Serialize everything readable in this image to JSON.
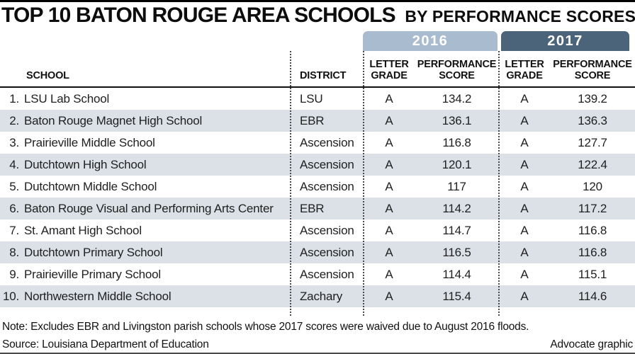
{
  "header": {
    "title": "TOP 10 BATON ROUGE AREA SCHOOLS",
    "subtitle": "BY PERFORMANCE SCORES"
  },
  "table": {
    "year_tabs": [
      {
        "label": "2016",
        "color": "#a9bccf"
      },
      {
        "label": "2017",
        "color": "#4c6479"
      }
    ],
    "columns": {
      "school": "SCHOOL",
      "district": "DISTRICT",
      "letter_grade": "LETTER GRADE",
      "performance_score": "PERFORMANCE SCORE"
    }
  },
  "chart_data": {
    "type": "table",
    "title": "TOP 10 BATON ROUGE AREA SCHOOLS BY PERFORMANCE SCORES",
    "column_groups": [
      "2016",
      "2017"
    ],
    "columns": [
      "SCHOOL",
      "DISTRICT",
      "LETTER GRADE (2016)",
      "PERFORMANCE SCORE (2016)",
      "LETTER GRADE (2017)",
      "PERFORMANCE SCORE (2017)"
    ],
    "rows": [
      {
        "rank": "1.",
        "school": "LSU Lab School",
        "district": "LSU",
        "grade_2016": "A",
        "score_2016": "134.2",
        "grade_2017": "A",
        "score_2017": "139.2"
      },
      {
        "rank": "2.",
        "school": "Baton Rouge Magnet High School",
        "district": "EBR",
        "grade_2016": "A",
        "score_2016": "136.1",
        "grade_2017": "A",
        "score_2017": "136.3"
      },
      {
        "rank": "3.",
        "school": "Prairieville Middle School",
        "district": "Ascension",
        "grade_2016": "A",
        "score_2016": "116.8",
        "grade_2017": "A",
        "score_2017": "127.7"
      },
      {
        "rank": "4.",
        "school": "Dutchtown High School",
        "district": "Ascension",
        "grade_2016": "A",
        "score_2016": "120.1",
        "grade_2017": "A",
        "score_2017": "122.4"
      },
      {
        "rank": "5.",
        "school": "Dutchtown Middle School",
        "district": "Ascension",
        "grade_2016": "A",
        "score_2016": "117",
        "grade_2017": "A",
        "score_2017": "120"
      },
      {
        "rank": "6.",
        "school": "Baton Rouge Visual and Performing Arts Center",
        "district": "EBR",
        "grade_2016": "A",
        "score_2016": "114.2",
        "grade_2017": "A",
        "score_2017": "117.2"
      },
      {
        "rank": "7.",
        "school": "St. Amant High School",
        "district": "Ascension",
        "grade_2016": "A",
        "score_2016": "114.7",
        "grade_2017": "A",
        "score_2017": "116.8"
      },
      {
        "rank": "8.",
        "school": "Dutchtown Primary School",
        "district": "Ascension",
        "grade_2016": "A",
        "score_2016": "116.5",
        "grade_2017": "A",
        "score_2017": "116.8"
      },
      {
        "rank": "9.",
        "school": "Prairieville Primary School",
        "district": "Ascension",
        "grade_2016": "A",
        "score_2016": "114.4",
        "grade_2017": "A",
        "score_2017": "115.1"
      },
      {
        "rank": "10.",
        "school": "Northwestern Middle School",
        "district": "Zachary",
        "grade_2016": "A",
        "score_2016": "115.4",
        "grade_2017": "A",
        "score_2017": "114.6"
      }
    ]
  },
  "footer": {
    "note": "Note: Excludes EBR and Livingston parish schools whose 2017 scores were waived due to August 2016 floods.",
    "source": "Source: Louisiana Department of Education",
    "credit": "Advocate graphic"
  },
  "colors": {
    "tab_2016": "#a9bccf",
    "tab_2017": "#4c6479",
    "row_alt": "#dbe1e7",
    "rule": "#000000",
    "dotted_divider": "#4a4a4a"
  }
}
